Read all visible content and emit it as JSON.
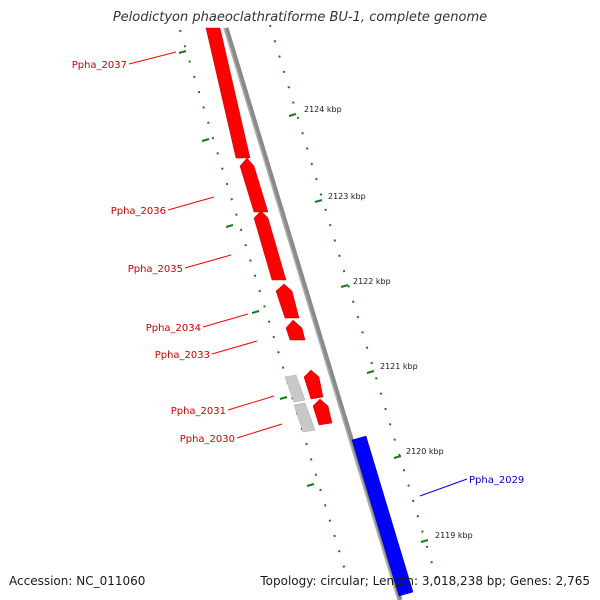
{
  "title": "Pelodictyon phaeoclathratiforme BU-1, complete genome",
  "footer": {
    "accession": "Accession: NC_011060",
    "summary": "Topology: circular; Length: 3,018,238 bp; Genes: 2,765"
  },
  "colors": {
    "forward_gene": "#ff0000",
    "reverse_gene": "#0000ff",
    "other_feature": "#c8c8c8",
    "backbone": "#808080",
    "ruler": "#1a7a1a"
  },
  "tick_labels": [
    "2124 kbp",
    "2123 kbp",
    "2122 kbp",
    "2121 kbp",
    "2120 kbp",
    "2119 kbp"
  ],
  "gene_labels": [
    {
      "text": "Ppha_2037",
      "strand": "forward"
    },
    {
      "text": "Ppha_2036",
      "strand": "forward"
    },
    {
      "text": "Ppha_2035",
      "strand": "forward"
    },
    {
      "text": "Ppha_2034",
      "strand": "forward"
    },
    {
      "text": "Ppha_2033",
      "strand": "forward"
    },
    {
      "text": "Ppha_2031",
      "strand": "forward"
    },
    {
      "text": "Ppha_2030",
      "strand": "forward"
    },
    {
      "text": "Ppha_2029",
      "strand": "reverse"
    }
  ]
}
